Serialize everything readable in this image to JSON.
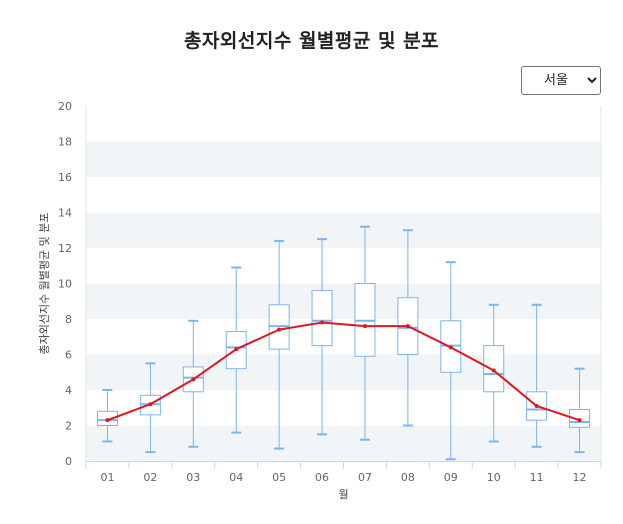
{
  "header": {
    "title": "총자외선지수 월별평균 및 분포"
  },
  "region_select": {
    "selected": "서울",
    "options": [
      "서울"
    ]
  },
  "chart_data": {
    "type": "boxplot",
    "title": "총자외선지수 월별평균 및 분포",
    "xlabel": "월",
    "ylabel": "총자외선지수 월별평균 및 분포",
    "ylim": [
      0,
      20
    ],
    "yticks": [
      0,
      2,
      4,
      6,
      8,
      10,
      12,
      14,
      16,
      18,
      20
    ],
    "categories": [
      "01",
      "02",
      "03",
      "04",
      "05",
      "06",
      "07",
      "08",
      "09",
      "10",
      "11",
      "12"
    ],
    "boxes": [
      {
        "min": 1.1,
        "q1": 2.0,
        "median": 2.3,
        "q3": 2.8,
        "max": 4.0
      },
      {
        "min": 0.5,
        "q1": 2.6,
        "median": 3.2,
        "q3": 3.7,
        "max": 5.5
      },
      {
        "min": 0.8,
        "q1": 3.9,
        "median": 4.7,
        "q3": 5.3,
        "max": 7.9
      },
      {
        "min": 1.6,
        "q1": 5.2,
        "median": 6.4,
        "q3": 7.3,
        "max": 10.9
      },
      {
        "min": 0.7,
        "q1": 6.3,
        "median": 7.6,
        "q3": 8.8,
        "max": 12.4
      },
      {
        "min": 1.5,
        "q1": 6.5,
        "median": 7.9,
        "q3": 9.6,
        "max": 12.5
      },
      {
        "min": 1.2,
        "q1": 5.9,
        "median": 7.9,
        "q3": 10.0,
        "max": 13.2
      },
      {
        "min": 2.0,
        "q1": 6.0,
        "median": 7.5,
        "q3": 9.2,
        "max": 13.0
      },
      {
        "min": 0.1,
        "q1": 5.0,
        "median": 6.5,
        "q3": 7.9,
        "max": 11.2
      },
      {
        "min": 1.1,
        "q1": 3.9,
        "median": 4.9,
        "q3": 6.5,
        "max": 8.8
      },
      {
        "min": 0.8,
        "q1": 2.3,
        "median": 2.9,
        "q3": 3.9,
        "max": 8.8
      },
      {
        "min": 0.5,
        "q1": 1.9,
        "median": 2.2,
        "q3": 2.9,
        "max": 5.2
      }
    ],
    "mean_line": [
      2.3,
      3.2,
      4.6,
      6.3,
      7.4,
      7.8,
      7.6,
      7.6,
      6.4,
      5.1,
      3.1,
      2.3
    ],
    "grid": "alternating horizontal bands",
    "colors": {
      "box": "#7cb5ec",
      "mean_line": "#e0161b",
      "band": "#f2f5f7"
    }
  }
}
